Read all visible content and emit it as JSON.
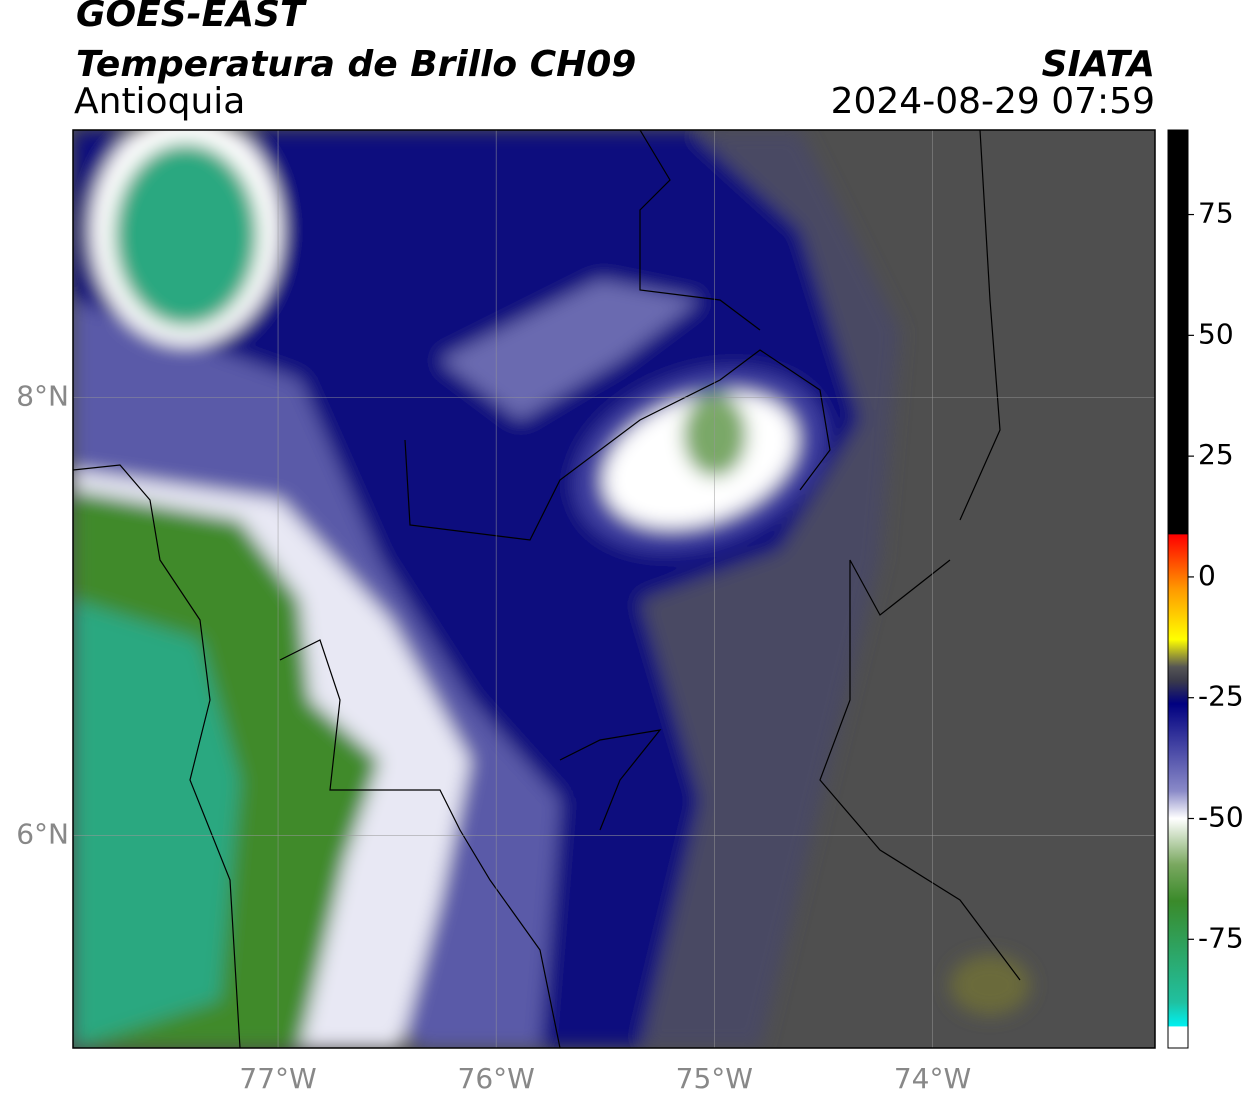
{
  "title": "GOES-EAST",
  "subtitle": "Temperatura de Brillo CH09",
  "region": "Antioquia",
  "source": "SIATA",
  "timestamp": "2024-08-29 07:59",
  "grid": true,
  "lon_axis": {
    "lim": [
      -77.94,
      -72.98
    ],
    "ticks": [
      {
        "value": -77,
        "label": "77°W"
      },
      {
        "value": -76,
        "label": "76°W"
      },
      {
        "value": -75,
        "label": "75°W"
      },
      {
        "value": -74,
        "label": "74°W"
      }
    ]
  },
  "lat_axis": {
    "lim": [
      5.03,
      9.22
    ],
    "ticks": [
      {
        "value": 8,
        "label": "8°N"
      },
      {
        "value": 6,
        "label": "6°N"
      }
    ]
  },
  "colorbar": {
    "lim": [
      -97.5,
      92.5
    ],
    "ticks": [
      75,
      50,
      25,
      0,
      -25,
      -50,
      -75
    ]
  }
}
